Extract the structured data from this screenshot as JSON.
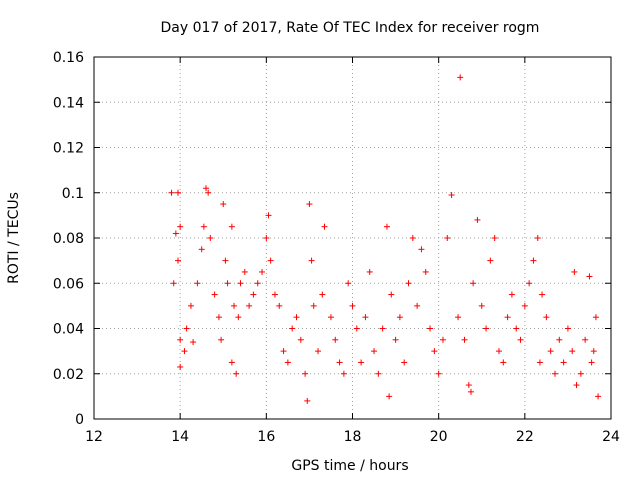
{
  "chart_data": {
    "type": "scatter",
    "title": "Day 017 of 2017, Rate Of TEC Index for receiver rogm",
    "xlabel": "GPS time / hours",
    "ylabel": "ROTI / TECUs",
    "xlim": [
      12,
      24
    ],
    "ylim": [
      0,
      0.16
    ],
    "xticks": [
      12,
      14,
      16,
      18,
      20,
      22,
      24
    ],
    "xtick_labels": [
      "12",
      "14",
      "16",
      "18",
      "20",
      "22",
      "24"
    ],
    "yticks": [
      0,
      0.02,
      0.04,
      0.06,
      0.08,
      0.1,
      0.12,
      0.14,
      0.16
    ],
    "ytick_labels": [
      "0",
      "0.02",
      "0.04",
      "0.06",
      "0.08",
      "0.1",
      "0.12",
      "0.14",
      "0.16"
    ],
    "grid": true,
    "marker": "+",
    "marker_color": "#ff0000",
    "series": [
      {
        "name": "ROTI",
        "points": [
          [
            13.8,
            0.1
          ],
          [
            13.95,
            0.1
          ],
          [
            13.9,
            0.082
          ],
          [
            14.0,
            0.085
          ],
          [
            13.95,
            0.07
          ],
          [
            13.85,
            0.06
          ],
          [
            14.0,
            0.035
          ],
          [
            14.1,
            0.03
          ],
          [
            14.0,
            0.023
          ],
          [
            14.15,
            0.04
          ],
          [
            14.25,
            0.05
          ],
          [
            14.3,
            0.034
          ],
          [
            14.4,
            0.06
          ],
          [
            14.5,
            0.075
          ],
          [
            14.55,
            0.085
          ],
          [
            14.6,
            0.102
          ],
          [
            14.65,
            0.1
          ],
          [
            14.7,
            0.08
          ],
          [
            14.8,
            0.055
          ],
          [
            14.9,
            0.045
          ],
          [
            14.95,
            0.035
          ],
          [
            15.0,
            0.095
          ],
          [
            15.05,
            0.07
          ],
          [
            15.1,
            0.06
          ],
          [
            15.2,
            0.085
          ],
          [
            15.25,
            0.05
          ],
          [
            15.2,
            0.025
          ],
          [
            15.3,
            0.02
          ],
          [
            15.35,
            0.045
          ],
          [
            15.4,
            0.06
          ],
          [
            15.5,
            0.065
          ],
          [
            15.6,
            0.05
          ],
          [
            15.7,
            0.055
          ],
          [
            15.8,
            0.06
          ],
          [
            15.9,
            0.065
          ],
          [
            16.0,
            0.08
          ],
          [
            16.05,
            0.09
          ],
          [
            16.1,
            0.07
          ],
          [
            16.2,
            0.055
          ],
          [
            16.3,
            0.05
          ],
          [
            16.4,
            0.03
          ],
          [
            16.5,
            0.025
          ],
          [
            16.6,
            0.04
          ],
          [
            16.7,
            0.045
          ],
          [
            16.8,
            0.035
          ],
          [
            16.9,
            0.02
          ],
          [
            16.95,
            0.008
          ],
          [
            17.0,
            0.095
          ],
          [
            17.05,
            0.07
          ],
          [
            17.1,
            0.05
          ],
          [
            17.2,
            0.03
          ],
          [
            17.3,
            0.055
          ],
          [
            17.35,
            0.085
          ],
          [
            17.5,
            0.045
          ],
          [
            17.6,
            0.035
          ],
          [
            17.7,
            0.025
          ],
          [
            17.8,
            0.02
          ],
          [
            17.9,
            0.06
          ],
          [
            18.0,
            0.05
          ],
          [
            18.1,
            0.04
          ],
          [
            18.2,
            0.025
          ],
          [
            18.3,
            0.045
          ],
          [
            18.4,
            0.065
          ],
          [
            18.5,
            0.03
          ],
          [
            18.6,
            0.02
          ],
          [
            18.7,
            0.04
          ],
          [
            18.8,
            0.085
          ],
          [
            18.85,
            0.01
          ],
          [
            18.9,
            0.055
          ],
          [
            19.0,
            0.035
          ],
          [
            19.1,
            0.045
          ],
          [
            19.2,
            0.025
          ],
          [
            19.3,
            0.06
          ],
          [
            19.4,
            0.08
          ],
          [
            19.5,
            0.05
          ],
          [
            19.6,
            0.075
          ],
          [
            19.7,
            0.065
          ],
          [
            19.8,
            0.04
          ],
          [
            19.9,
            0.03
          ],
          [
            20.0,
            0.02
          ],
          [
            20.1,
            0.035
          ],
          [
            20.2,
            0.08
          ],
          [
            20.3,
            0.099
          ],
          [
            20.45,
            0.045
          ],
          [
            20.5,
            0.151
          ],
          [
            20.6,
            0.035
          ],
          [
            20.7,
            0.015
          ],
          [
            20.75,
            0.012
          ],
          [
            20.8,
            0.06
          ],
          [
            20.9,
            0.088
          ],
          [
            21.0,
            0.05
          ],
          [
            21.1,
            0.04
          ],
          [
            21.2,
            0.07
          ],
          [
            21.3,
            0.08
          ],
          [
            21.4,
            0.03
          ],
          [
            21.5,
            0.025
          ],
          [
            21.6,
            0.045
          ],
          [
            21.7,
            0.055
          ],
          [
            21.8,
            0.04
          ],
          [
            21.9,
            0.035
          ],
          [
            22.0,
            0.05
          ],
          [
            22.1,
            0.06
          ],
          [
            22.2,
            0.07
          ],
          [
            22.3,
            0.08
          ],
          [
            22.35,
            0.025
          ],
          [
            22.4,
            0.055
          ],
          [
            22.5,
            0.045
          ],
          [
            22.6,
            0.03
          ],
          [
            22.7,
            0.02
          ],
          [
            22.8,
            0.035
          ],
          [
            22.9,
            0.025
          ],
          [
            23.0,
            0.04
          ],
          [
            23.1,
            0.03
          ],
          [
            23.15,
            0.065
          ],
          [
            23.2,
            0.015
          ],
          [
            23.3,
            0.02
          ],
          [
            23.4,
            0.035
          ],
          [
            23.5,
            0.063
          ],
          [
            23.55,
            0.025
          ],
          [
            23.6,
            0.03
          ],
          [
            23.65,
            0.045
          ],
          [
            23.7,
            0.01
          ]
        ]
      }
    ]
  }
}
